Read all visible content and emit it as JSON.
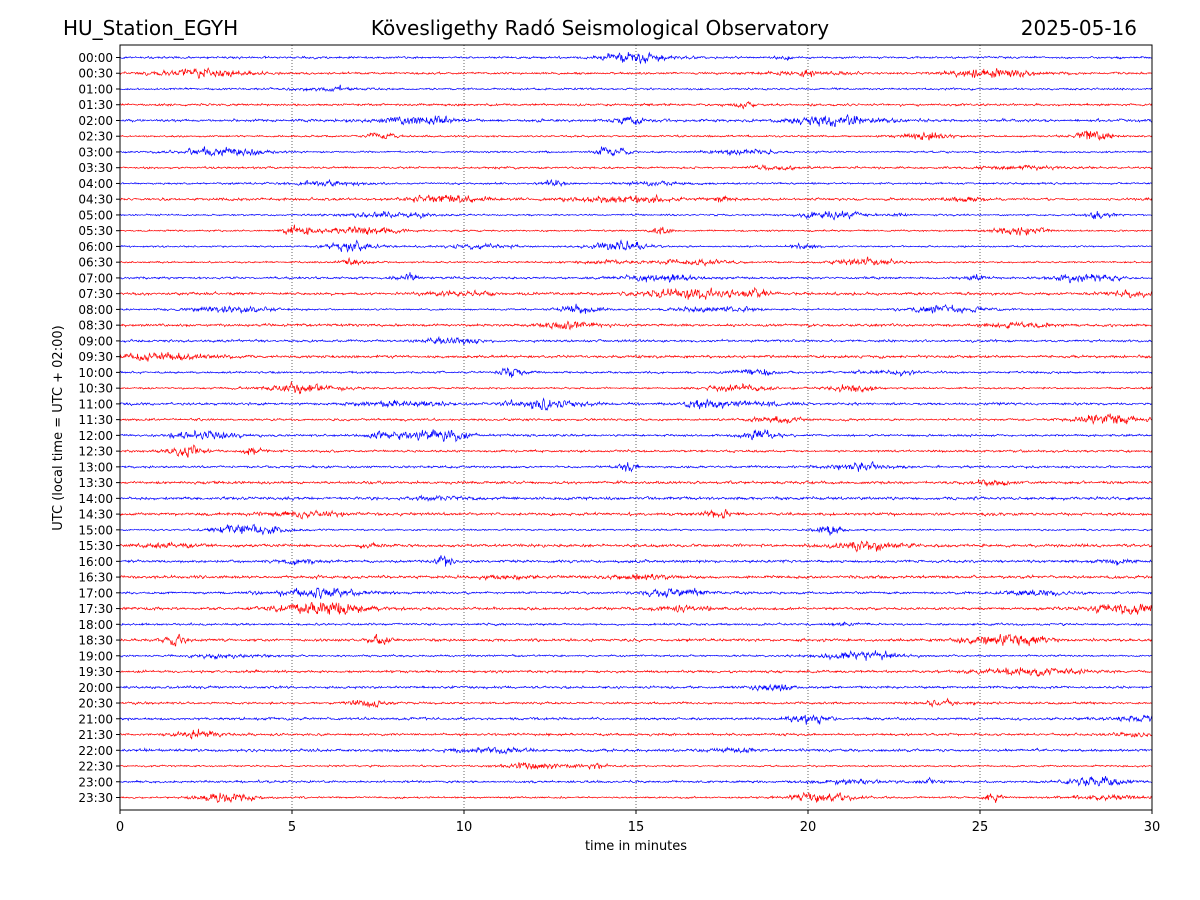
{
  "header": {
    "station": "HU_Station_EGYH",
    "title": "Kövesligethy Radó Seismological Observatory",
    "date": "2025-05-16"
  },
  "chart_data": {
    "type": "line",
    "title": "Kövesligethy Radó Seismological Observatory",
    "xlabel": "time in minutes",
    "ylabel": "UTC (local time = UTC + 02:00)",
    "xlim": [
      0,
      30
    ],
    "xticks": [
      0,
      5,
      10,
      15,
      20,
      25,
      30
    ],
    "x_grid": "dotted vertical lines at 5-minute intervals",
    "trace_colors": [
      "#0000ff",
      "#ff0000"
    ],
    "rows": [
      "00:00",
      "00:30",
      "01:00",
      "01:30",
      "02:00",
      "02:30",
      "03:00",
      "03:30",
      "04:00",
      "04:30",
      "05:00",
      "05:30",
      "06:00",
      "06:30",
      "07:00",
      "07:30",
      "08:00",
      "08:30",
      "09:00",
      "09:30",
      "10:00",
      "10:30",
      "11:00",
      "11:30",
      "12:00",
      "12:30",
      "13:00",
      "13:30",
      "14:00",
      "14:30",
      "15:00",
      "15:30",
      "16:00",
      "16:30",
      "17:00",
      "17:30",
      "18:00",
      "18:30",
      "19:00",
      "19:30",
      "20:00",
      "20:30",
      "21:00",
      "21:30",
      "22:00",
      "22:30",
      "23:00",
      "23:30"
    ],
    "series_description": "48 helicorder traces of ground motion, each 30 minutes long, alternating blue and red"
  }
}
